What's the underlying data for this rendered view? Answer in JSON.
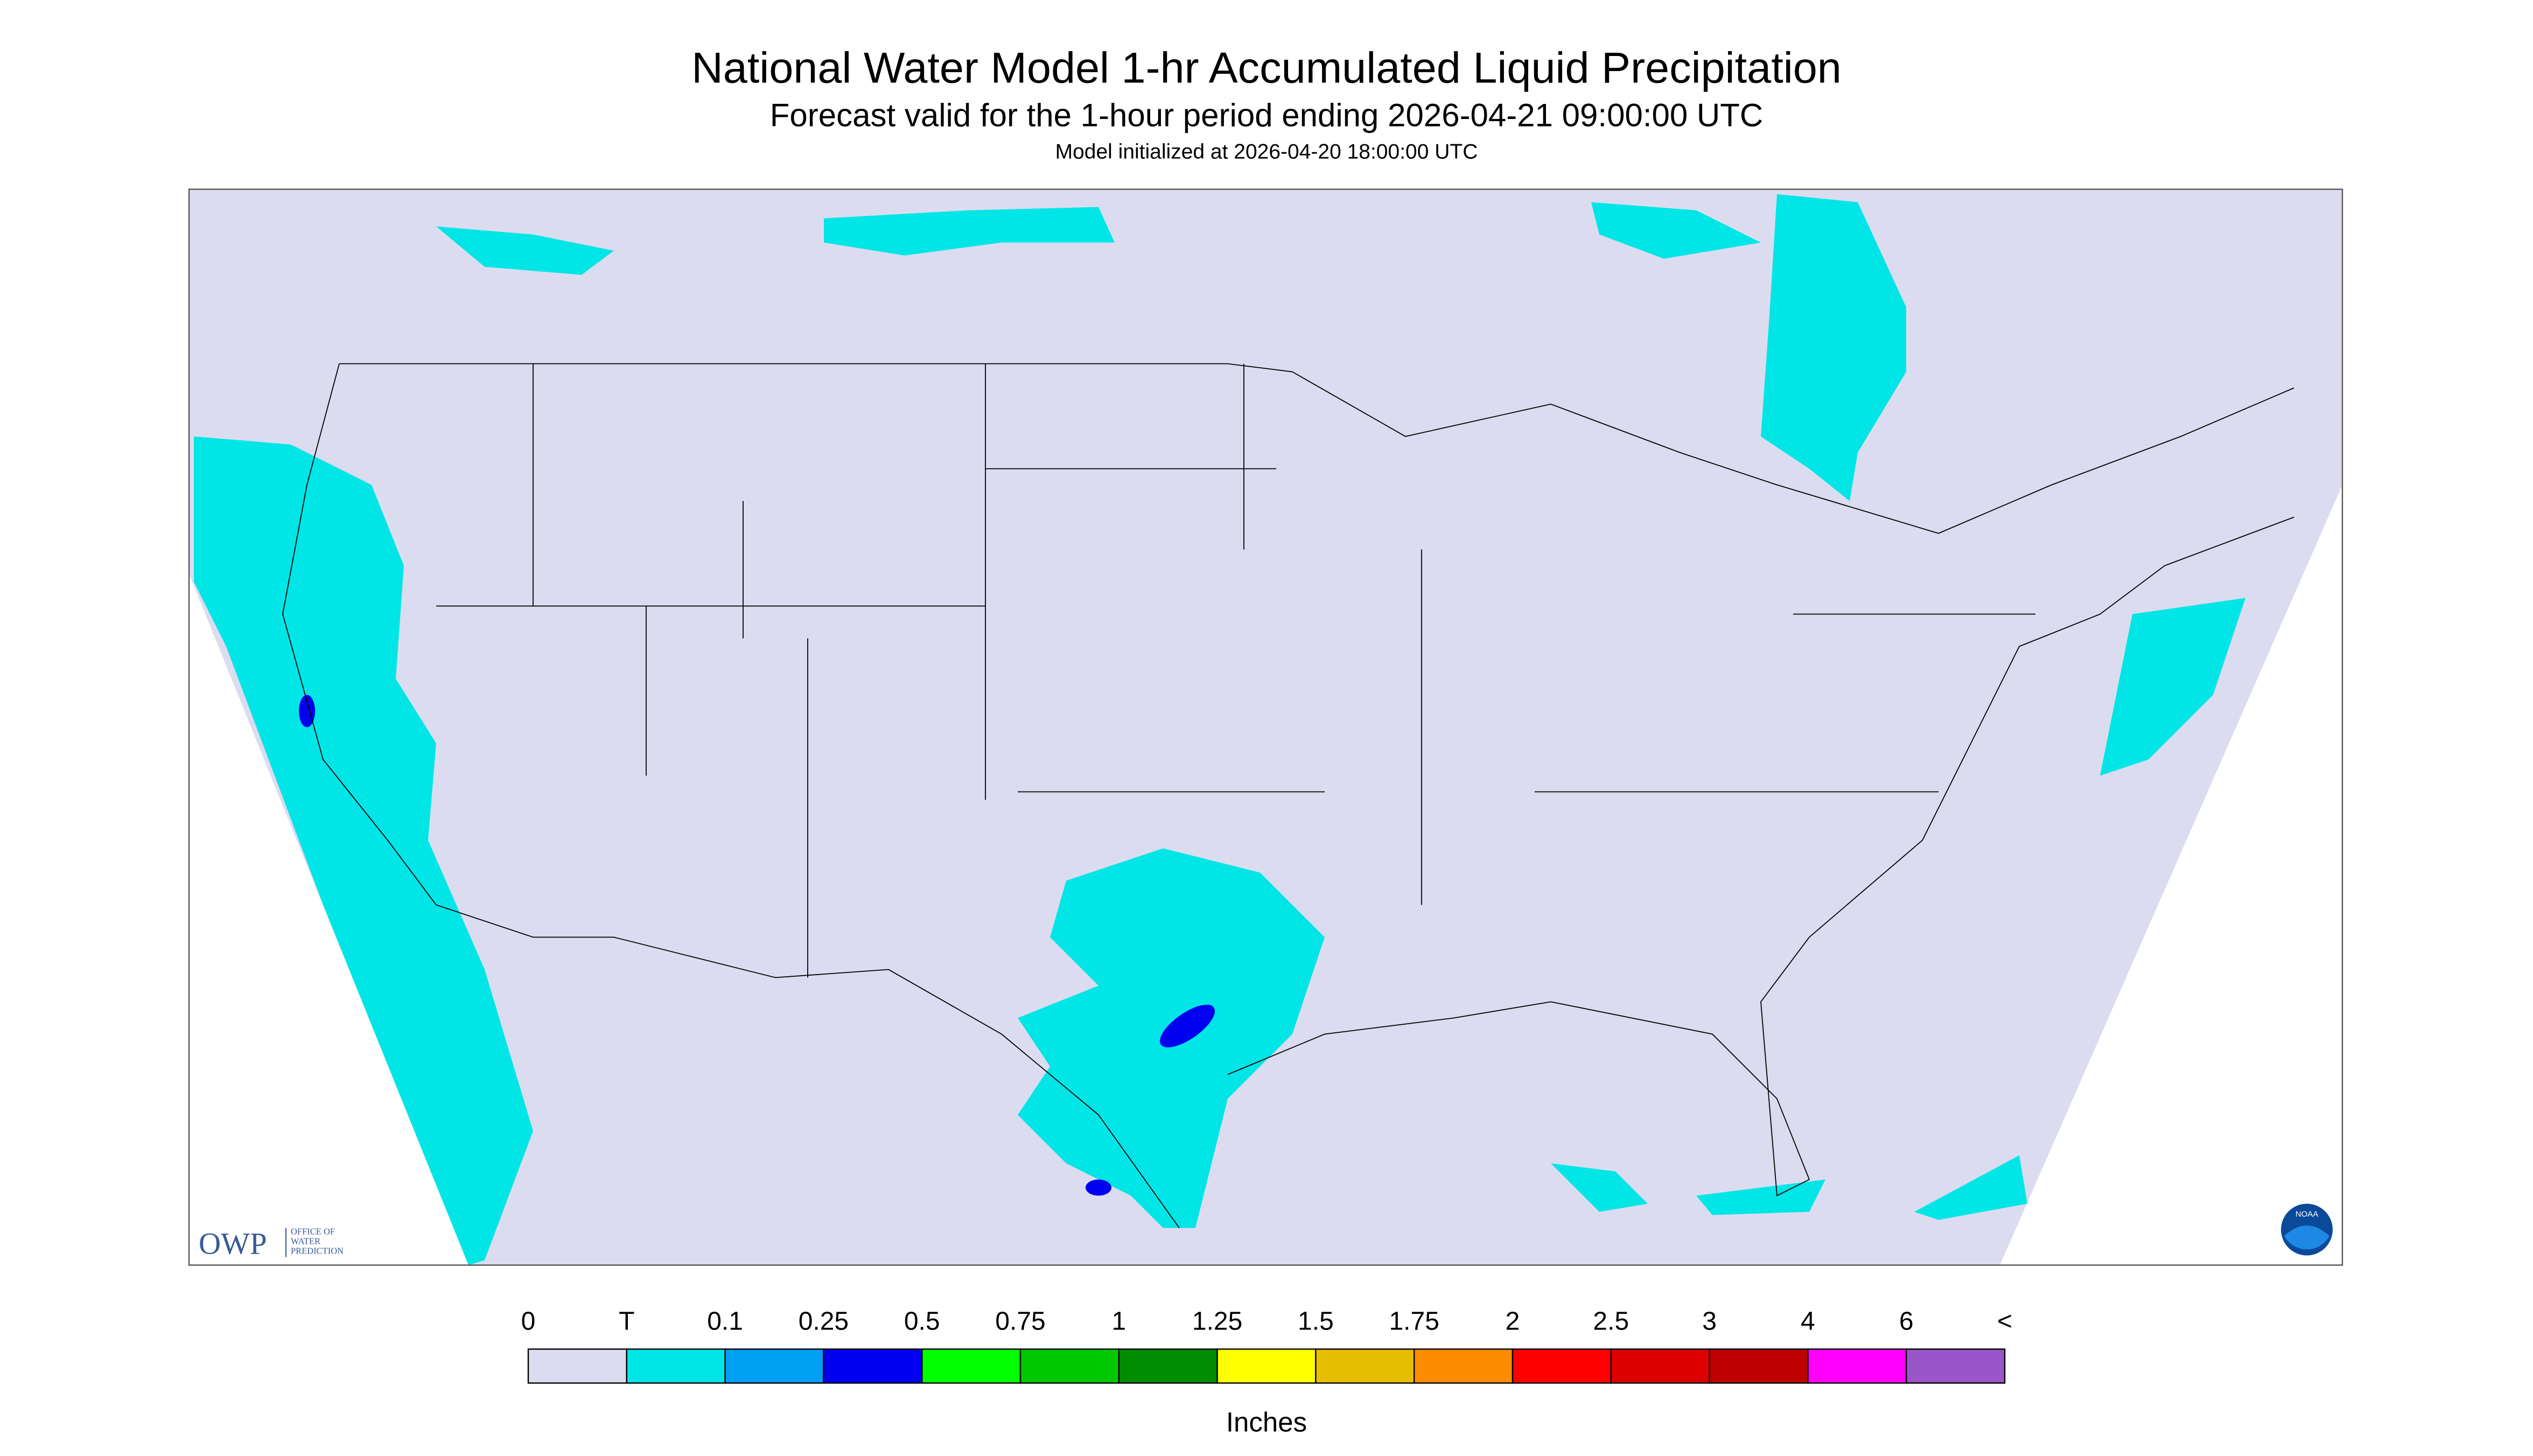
{
  "header": {
    "title": "National Water Model 1-hr Accumulated Liquid Precipitation",
    "subtitle": "Forecast valid for the 1-hour period ending 2026-04-21 09:00:00 UTC",
    "note": "Model initialized at 2026-04-20 18:00:00 UTC"
  },
  "legend": {
    "labels": [
      "0",
      "T",
      "0.1",
      "0.25",
      "0.5",
      "0.75",
      "1",
      "1.25",
      "1.5",
      "1.75",
      "2",
      "2.5",
      "3",
      "4",
      "6",
      "<"
    ],
    "colors": [
      "#dcdcf0",
      "#00e6e6",
      "#00a0f5",
      "#0000f0",
      "#00ff00",
      "#00c800",
      "#008c00",
      "#ffff00",
      "#e6be00",
      "#ff8c00",
      "#ff0000",
      "#dc0000",
      "#be0000",
      "#ff00ff",
      "#9955c9"
    ],
    "units": "Inches"
  },
  "logo": {
    "abbr": "OWP",
    "lines": [
      "OFFICE OF",
      "WATER",
      "PREDICTION"
    ],
    "badge": "NOAA"
  }
}
